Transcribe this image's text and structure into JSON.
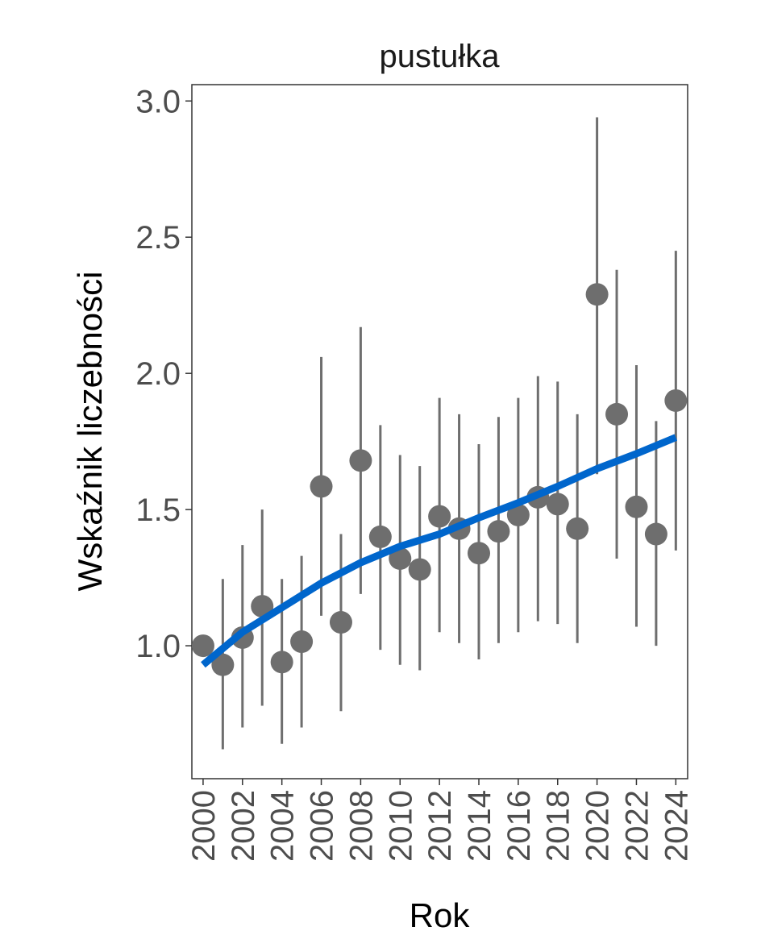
{
  "chart_data": {
    "type": "scatter",
    "title": "pustułka",
    "xlabel": "Rok",
    "ylabel": "Wskaźnik liczebności",
    "xlim": [
      1999.43,
      2024.6
    ],
    "ylim": [
      0.512,
      3.06
    ],
    "grid": false,
    "x_ticks": [
      2000,
      2002,
      2004,
      2006,
      2008,
      2010,
      2012,
      2014,
      2016,
      2018,
      2020,
      2022,
      2024
    ],
    "x_tick_labels": [
      "2000",
      "2002",
      "2004",
      "2006",
      "2008",
      "2010",
      "2012",
      "2014",
      "2016",
      "2018",
      "2020",
      "2022",
      "2024"
    ],
    "y_ticks": [
      1.0,
      1.5,
      2.0,
      2.5,
      3.0
    ],
    "y_tick_labels": [
      "1.0",
      "1.5",
      "2.0",
      "2.5",
      "3.0"
    ],
    "points": {
      "x": [
        2000,
        2001,
        2002,
        2003,
        2004,
        2005,
        2006,
        2007,
        2008,
        2009,
        2010,
        2011,
        2012,
        2013,
        2014,
        2015,
        2016,
        2017,
        2018,
        2019,
        2020,
        2021,
        2022,
        2023,
        2024
      ],
      "y": [
        1.0,
        0.93,
        1.03,
        1.145,
        0.94,
        1.015,
        1.585,
        1.086,
        1.68,
        1.4,
        1.32,
        1.28,
        1.475,
        1.43,
        1.34,
        1.42,
        1.48,
        1.545,
        1.52,
        1.43,
        2.29,
        1.85,
        1.51,
        1.41,
        1.9
      ],
      "lower": [
        null,
        0.62,
        0.7,
        0.78,
        0.64,
        0.7,
        1.11,
        0.76,
        1.19,
        0.985,
        0.93,
        0.91,
        1.05,
        1.01,
        0.95,
        1.01,
        1.05,
        1.09,
        1.08,
        1.01,
        1.63,
        1.32,
        1.07,
        1.0,
        1.35
      ],
      "upper": [
        null,
        1.245,
        1.37,
        1.5,
        1.245,
        1.33,
        2.06,
        1.41,
        2.17,
        1.81,
        1.7,
        1.66,
        1.91,
        1.85,
        1.74,
        1.84,
        1.91,
        1.99,
        1.97,
        1.85,
        2.94,
        2.38,
        2.03,
        1.825,
        2.45
      ],
      "color": "#6e6e6e"
    },
    "trend": {
      "x": [
        2000,
        2002,
        2004,
        2006,
        2008,
        2010,
        2012,
        2014,
        2016,
        2018,
        2020,
        2022,
        2024
      ],
      "y": [
        0.93,
        1.05,
        1.14,
        1.23,
        1.305,
        1.365,
        1.41,
        1.47,
        1.525,
        1.585,
        1.65,
        1.705,
        1.765
      ],
      "color": "#0066cc"
    }
  }
}
